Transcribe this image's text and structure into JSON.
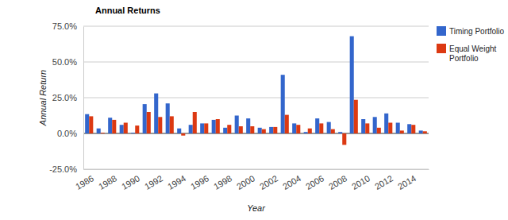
{
  "chart_data": {
    "type": "bar",
    "title": "Annual Returns",
    "x_label": "Year",
    "y_label": "Annual Return",
    "categories": [
      "1986",
      null,
      "1988",
      null,
      "1990",
      null,
      "1992",
      null,
      "1994",
      null,
      "1996",
      null,
      "1998",
      null,
      "2000",
      null,
      "2002",
      null,
      "2004",
      null,
      "2006",
      null,
      "2008",
      null,
      "2010",
      null,
      "2012",
      null,
      "2014",
      null
    ],
    "series": [
      {
        "name": "Timing Portfolio",
        "color": "#3366cc",
        "values": [
          13.5,
          3.5,
          11,
          6,
          0.5,
          20.5,
          28,
          21,
          3.5,
          6,
          7,
          9.5,
          4,
          12.5,
          10.5,
          4,
          4.5,
          41,
          7,
          1,
          10.5,
          8,
          1,
          68,
          10,
          11.5,
          14,
          7.5,
          6.5,
          2
        ]
      },
      {
        "name": "Equal Weight Portfolio",
        "color": "#dc3912",
        "values": [
          12,
          0.5,
          9.5,
          7.5,
          5.5,
          15,
          11.5,
          12,
          -1.5,
          15,
          7,
          10,
          6,
          5,
          5,
          3,
          4.5,
          13,
          6,
          3.5,
          7,
          3,
          -8,
          23.5,
          7,
          4,
          7.5,
          2,
          6,
          1.5
        ]
      }
    ],
    "ylim": [
      -25,
      75
    ],
    "yticks": [
      {
        "value": -25,
        "label": "-25.0%"
      },
      {
        "value": 0,
        "label": "0.0%"
      },
      {
        "value": 25,
        "label": "25.0%"
      },
      {
        "value": 50,
        "label": "50.0%"
      },
      {
        "value": 75,
        "label": "75.0%"
      }
    ],
    "grid": true,
    "legend": "top-right"
  }
}
